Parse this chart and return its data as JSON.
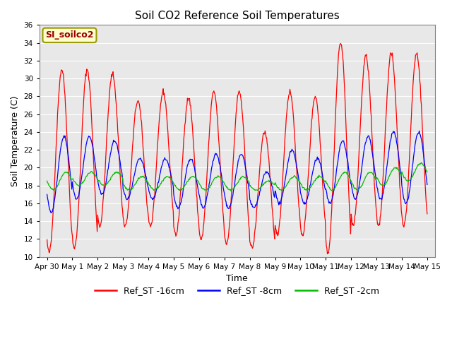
{
  "title": "Soil CO2 Reference Soil Temperatures",
  "xlabel": "Time",
  "ylabel": "Soil Temperature (C)",
  "ylim": [
    10,
    36
  ],
  "yticks": [
    10,
    12,
    14,
    16,
    18,
    20,
    22,
    24,
    26,
    28,
    30,
    32,
    34,
    36
  ],
  "label_box_text": "SI_soilco2",
  "label_box_color": "#ffffcc",
  "label_box_text_color": "#990000",
  "plot_bg_color": "#e8e8e8",
  "line_colors": {
    "16cm": "#ff0000",
    "8cm": "#0000ff",
    "2cm": "#00bb00"
  },
  "legend_labels": [
    "Ref_ST -16cm",
    "Ref_ST -8cm",
    "Ref_ST -2cm"
  ],
  "xtick_labels": [
    "Apr 30",
    "May 1",
    "May 2",
    "May 3",
    "May 4",
    "May 5",
    "May 6",
    "May 7",
    "May 8",
    "May 9",
    "May 10",
    "May 11",
    "May 12",
    "May 13",
    "May 14",
    "May 15"
  ],
  "red_peaks": [
    31.0,
    31.0,
    30.5,
    27.5,
    28.5,
    27.8,
    28.5,
    28.5,
    24.0,
    28.5,
    28.0,
    34.0,
    32.5,
    32.8,
    32.8,
    15.0
  ],
  "red_troughs": [
    10.5,
    11.0,
    13.5,
    13.5,
    13.5,
    12.5,
    12.0,
    11.5,
    11.0,
    12.5,
    12.5,
    10.5,
    13.5,
    13.5,
    13.5,
    14.5
  ],
  "red_peak_phase": 0.58,
  "red_trough_phase": 0.08,
  "blue_peaks": [
    23.5,
    23.5,
    23.0,
    21.0,
    21.0,
    21.0,
    21.5,
    21.5,
    19.5,
    22.0,
    21.0,
    23.0,
    23.5,
    24.0,
    24.0,
    19.0
  ],
  "blue_troughs": [
    15.0,
    16.5,
    17.0,
    16.5,
    16.5,
    15.5,
    15.5,
    15.5,
    15.5,
    16.0,
    16.0,
    16.0,
    16.5,
    16.5,
    16.0,
    19.0
  ],
  "green_peaks": [
    19.5,
    19.5,
    19.5,
    19.0,
    19.0,
    19.0,
    19.0,
    19.0,
    18.5,
    19.0,
    19.0,
    19.5,
    19.5,
    20.0,
    20.5,
    20.0
  ],
  "green_troughs": [
    17.5,
    18.0,
    18.0,
    17.5,
    17.5,
    17.5,
    17.5,
    17.5,
    17.5,
    17.5,
    17.5,
    17.5,
    17.5,
    18.0,
    18.5,
    18.5
  ],
  "n_per_day": 48
}
